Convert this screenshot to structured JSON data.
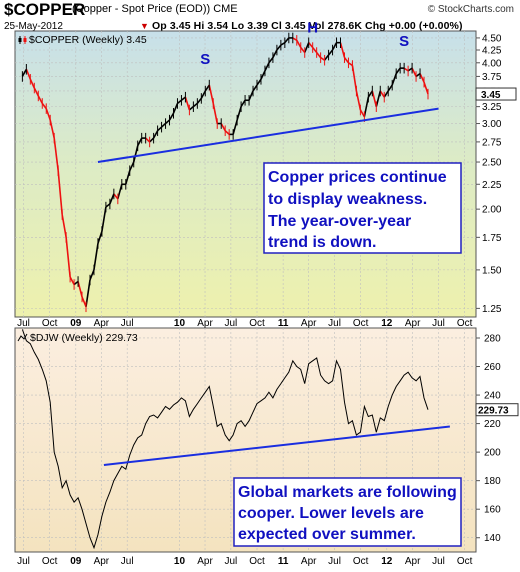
{
  "header": {
    "symbol": "$COPPER",
    "description": "(Copper - Spot Price (EOD)) CME",
    "brand": "© StockCharts.com",
    "date": "25-May-2012",
    "quote": "Op 3.45  Hi 3.54  Lo 3.39  Cl 3.45  Vol 278.6K  Chg +0.00 (+0.00%)",
    "quote_indicator": "▼"
  },
  "colors": {
    "copper_up": "#000000",
    "copper_down": "#ee1111",
    "trendline": "#1a2ee0",
    "annotation_text": "#1010c0",
    "annotation_border": "#2020c0",
    "last_value_box_bg": "#ffffff"
  },
  "x_axis": {
    "labels": [
      "Jul",
      "Oct",
      "09",
      "Apr",
      "Jul",
      "10",
      "Apr",
      "Jul",
      "Oct",
      "11",
      "Apr",
      "Jul",
      "Oct",
      "12",
      "Apr",
      "Jul",
      "Oct"
    ],
    "bold_labels": [
      "09",
      "10",
      "11",
      "12"
    ]
  },
  "chart_data": [
    {
      "type": "line",
      "panel": "copper",
      "legend": "$COPPER (Weekly) 3.45",
      "legend_icon": "candlestick-icon",
      "y_ticks": [
        "4.50",
        "4.25",
        "4.00",
        "3.75",
        "3.50",
        "3.25",
        "3.00",
        "2.75",
        "2.50",
        "2.25",
        "2.00",
        "1.75",
        "1.50",
        "1.25"
      ],
      "ylim": [
        1.2,
        4.65
      ],
      "y_scale": "log",
      "last_value": "3.45",
      "x_dates": [
        "2008-06-27",
        "2008-07-11",
        "2008-07-25",
        "2008-08-08",
        "2008-08-22",
        "2008-09-05",
        "2008-09-19",
        "2008-10-03",
        "2008-10-17",
        "2008-10-31",
        "2008-11-14",
        "2008-11-28",
        "2008-12-12",
        "2008-12-26",
        "2009-01-09",
        "2009-01-23",
        "2009-02-06",
        "2009-02-20",
        "2009-03-06",
        "2009-03-20",
        "2009-04-03",
        "2009-04-17",
        "2009-05-01",
        "2009-05-15",
        "2009-05-29",
        "2009-06-12",
        "2009-06-26",
        "2009-07-10",
        "2009-07-24",
        "2009-08-07",
        "2009-08-21",
        "2009-09-04",
        "2009-09-18",
        "2009-10-02",
        "2009-10-16",
        "2009-10-30",
        "2009-11-13",
        "2009-11-27",
        "2009-12-11",
        "2009-12-25",
        "2010-01-08",
        "2010-01-22",
        "2010-02-05",
        "2010-02-19",
        "2010-03-05",
        "2010-03-19",
        "2010-04-02",
        "2010-04-16",
        "2010-04-30",
        "2010-05-14",
        "2010-05-28",
        "2010-06-11",
        "2010-06-25",
        "2010-07-09",
        "2010-07-23",
        "2010-08-06",
        "2010-08-20",
        "2010-09-03",
        "2010-09-17",
        "2010-10-01",
        "2010-10-15",
        "2010-10-29",
        "2010-11-12",
        "2010-11-26",
        "2010-12-10",
        "2010-12-24",
        "2011-01-07",
        "2011-01-21",
        "2011-02-04",
        "2011-02-18",
        "2011-03-04",
        "2011-03-18",
        "2011-04-01",
        "2011-04-15",
        "2011-04-29",
        "2011-05-13",
        "2011-05-27",
        "2011-06-10",
        "2011-06-24",
        "2011-07-08",
        "2011-07-22",
        "2011-08-05",
        "2011-08-19",
        "2011-09-02",
        "2011-09-16",
        "2011-09-30",
        "2011-10-14",
        "2011-10-28",
        "2011-11-11",
        "2011-11-25",
        "2011-12-09",
        "2011-12-23",
        "2012-01-06",
        "2012-01-20",
        "2012-02-03",
        "2012-02-17",
        "2012-03-02",
        "2012-03-16",
        "2012-03-30",
        "2012-04-13",
        "2012-04-27",
        "2012-05-11",
        "2012-05-25"
      ],
      "values": [
        3.75,
        3.88,
        3.7,
        3.55,
        3.42,
        3.3,
        3.22,
        3.05,
        2.8,
        2.4,
        1.95,
        1.75,
        1.45,
        1.4,
        1.42,
        1.32,
        1.26,
        1.43,
        1.5,
        1.7,
        1.8,
        2.02,
        2.05,
        2.15,
        2.1,
        2.25,
        2.25,
        2.4,
        2.5,
        2.7,
        2.8,
        2.8,
        2.75,
        2.8,
        2.9,
        2.95,
        3.0,
        3.05,
        3.15,
        3.3,
        3.35,
        3.4,
        3.2,
        3.25,
        3.3,
        3.38,
        3.5,
        3.6,
        3.3,
        3.0,
        3.0,
        2.9,
        2.85,
        2.85,
        3.05,
        3.25,
        3.35,
        3.35,
        3.5,
        3.6,
        3.7,
        3.85,
        4.0,
        4.1,
        4.25,
        4.35,
        4.4,
        4.5,
        4.5,
        4.45,
        4.3,
        4.2,
        4.4,
        4.3,
        4.2,
        4.1,
        4.05,
        4.15,
        4.25,
        4.4,
        4.4,
        4.1,
        4.0,
        3.95,
        3.5,
        3.2,
        3.1,
        3.4,
        3.5,
        3.25,
        3.5,
        3.4,
        3.5,
        3.6,
        3.8,
        3.9,
        3.9,
        3.85,
        3.9,
        3.75,
        3.8,
        3.65,
        3.45
      ],
      "trendline": {
        "start_date": "2009-03-20",
        "start_value": 2.5,
        "end_date": "2012-07-01",
        "end_value": 3.22
      },
      "peak_labels": [
        {
          "text": "S",
          "date": "2010-04-02",
          "value": 3.98
        },
        {
          "text": "H",
          "date": "2011-04-15",
          "value": 4.62
        },
        {
          "text": "S",
          "date": "2012-03-02",
          "value": 4.33
        }
      ],
      "annotation": {
        "lines": [
          "Copper prices continue",
          "to display weakness.",
          "The year-over-year",
          "trend is down."
        ]
      }
    },
    {
      "type": "line",
      "panel": "djw",
      "legend": "$DJW (Weekly) 229.73",
      "legend_icon": "line-chart-icon",
      "y_ticks": [
        "280",
        "260",
        "240",
        "220",
        "200",
        "180",
        "160",
        "140"
      ],
      "ylim": [
        130,
        287
      ],
      "last_value": "229.73",
      "x_dates": [
        "2008-06-27",
        "2008-07-11",
        "2008-07-25",
        "2008-08-08",
        "2008-08-22",
        "2008-09-05",
        "2008-09-19",
        "2008-10-03",
        "2008-10-17",
        "2008-10-31",
        "2008-11-14",
        "2008-11-28",
        "2008-12-12",
        "2008-12-26",
        "2009-01-09",
        "2009-01-23",
        "2009-02-06",
        "2009-02-20",
        "2009-03-06",
        "2009-03-20",
        "2009-04-03",
        "2009-04-17",
        "2009-05-01",
        "2009-05-15",
        "2009-05-29",
        "2009-06-12",
        "2009-06-26",
        "2009-07-10",
        "2009-07-24",
        "2009-08-07",
        "2009-08-21",
        "2009-09-04",
        "2009-09-18",
        "2009-10-02",
        "2009-10-16",
        "2009-10-30",
        "2009-11-13",
        "2009-11-27",
        "2009-12-11",
        "2009-12-25",
        "2010-01-08",
        "2010-01-22",
        "2010-02-05",
        "2010-02-19",
        "2010-03-05",
        "2010-03-19",
        "2010-04-02",
        "2010-04-16",
        "2010-04-30",
        "2010-05-14",
        "2010-05-28",
        "2010-06-11",
        "2010-06-25",
        "2010-07-09",
        "2010-07-23",
        "2010-08-06",
        "2010-08-20",
        "2010-09-03",
        "2010-09-17",
        "2010-10-01",
        "2010-10-15",
        "2010-10-29",
        "2010-11-12",
        "2010-11-26",
        "2010-12-10",
        "2010-12-24",
        "2011-01-07",
        "2011-01-21",
        "2011-02-04",
        "2011-02-18",
        "2011-03-04",
        "2011-03-18",
        "2011-04-01",
        "2011-04-15",
        "2011-04-29",
        "2011-05-13",
        "2011-05-27",
        "2011-06-10",
        "2011-06-24",
        "2011-07-08",
        "2011-07-22",
        "2011-08-05",
        "2011-08-19",
        "2011-09-02",
        "2011-09-16",
        "2011-09-30",
        "2011-10-14",
        "2011-10-28",
        "2011-11-11",
        "2011-11-25",
        "2011-12-09",
        "2011-12-23",
        "2012-01-06",
        "2012-01-20",
        "2012-02-03",
        "2012-02-17",
        "2012-03-02",
        "2012-03-16",
        "2012-03-30",
        "2012-04-13",
        "2012-04-27",
        "2012-05-11",
        "2012-05-25"
      ],
      "values": [
        286,
        278,
        276,
        270,
        265,
        258,
        250,
        235,
        200,
        190,
        175,
        180,
        170,
        165,
        168,
        160,
        150,
        140,
        133,
        142,
        155,
        165,
        172,
        180,
        185,
        190,
        188,
        198,
        205,
        210,
        212,
        220,
        225,
        226,
        224,
        228,
        232,
        230,
        233,
        235,
        238,
        236,
        225,
        230,
        234,
        238,
        242,
        246,
        232,
        218,
        220,
        212,
        208,
        212,
        220,
        222,
        218,
        222,
        228,
        234,
        236,
        238,
        242,
        238,
        244,
        248,
        252,
        256,
        264,
        260,
        258,
        248,
        262,
        264,
        266,
        254,
        250,
        248,
        250,
        264,
        258,
        235,
        220,
        222,
        212,
        214,
        232,
        225,
        226,
        214,
        224,
        222,
        232,
        240,
        246,
        250,
        254,
        256,
        252,
        250,
        253,
        238,
        229.73
      ],
      "trendline": {
        "start_date": "2009-04-10",
        "start_value": 191,
        "end_date": "2012-08-10",
        "end_value": 218
      },
      "annotation": {
        "lines": [
          "Global markets are following",
          "cooper. Lower levels are",
          "expected over summer."
        ]
      }
    }
  ]
}
